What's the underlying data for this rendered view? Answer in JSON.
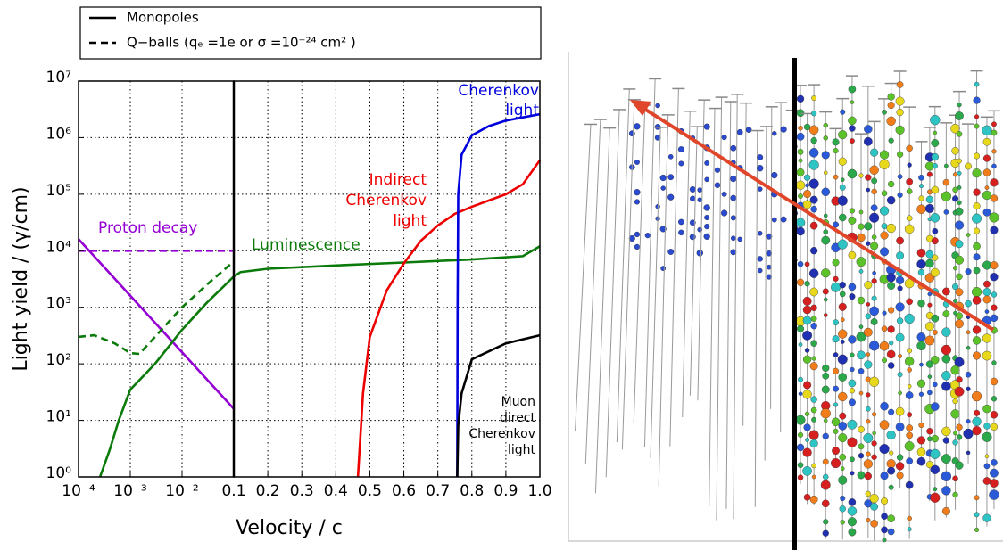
{
  "chart_data": [
    {
      "type": "line",
      "ylabel": "Light yield / (γ/cm)",
      "log_x": true,
      "log_y": true,
      "grid": true,
      "legend": [
        {
          "name": "Monopoles",
          "dash": false
        },
        {
          "name": "Q−balls (qₑ =1e or σ =10⁻²⁴  cm² )",
          "dash": true
        }
      ],
      "xlim": [
        0.0001,
        0.1
      ],
      "xticks": [
        {
          "value": 0.0001,
          "label": "10⁻⁴"
        },
        {
          "value": 0.001,
          "label": "10⁻³"
        },
        {
          "value": 0.01,
          "label": "10⁻²"
        }
      ],
      "ylim": [
        1,
        10000000
      ],
      "yticks": [
        {
          "value": 1,
          "label": "10⁰"
        },
        {
          "value": 10,
          "label": "10¹"
        },
        {
          "value": 100,
          "label": "10²"
        },
        {
          "value": 1000,
          "label": "10³"
        },
        {
          "value": 10000,
          "label": "10⁴"
        },
        {
          "value": 100000,
          "label": "10⁵"
        },
        {
          "value": 1000000,
          "label": "10⁶"
        },
        {
          "value": 10000000,
          "label": "10⁷"
        }
      ],
      "series": [
        {
          "color": "#9400d3",
          "dash": false,
          "x": [
            0.0001,
            0.1
          ],
          "values": [
            16000,
            16
          ]
        },
        {
          "color": "#9400d3",
          "dash": true,
          "x": [
            0.0001,
            0.1
          ],
          "values": [
            10000,
            10000
          ]
        },
        {
          "color": "#0a7a0a",
          "dash": false,
          "x": [
            0.00026,
            0.0004,
            0.0006,
            0.001,
            0.003,
            0.01,
            0.03,
            0.1
          ],
          "values": [
            1,
            3,
            10,
            35,
            100,
            400,
            1200,
            3500
          ]
        },
        {
          "color": "#0a7a0a",
          "dash": true,
          "x": [
            0.0001,
            0.0002,
            0.0005,
            0.001,
            0.0015,
            0.003,
            0.01,
            0.03,
            0.1
          ],
          "values": [
            300,
            320,
            230,
            155,
            150,
            300,
            1000,
            2500,
            6500
          ]
        }
      ],
      "annotations": [
        {
          "text": [
            "Proton decay"
          ],
          "color": "#9400d3"
        }
      ]
    },
    {
      "type": "line",
      "xlabel": "Velocity / c",
      "grid": true,
      "xlim": [
        0.1,
        1
      ],
      "xticks": [
        0.1,
        0.2,
        0.3,
        0.4,
        0.5,
        0.6,
        0.7,
        0.8,
        0.9,
        {
          "value": 1,
          "label": "1.0"
        }
      ],
      "series": [
        {
          "color": "#0a7a0a",
          "dash": false,
          "x": [
            0.1,
            0.12,
            0.2,
            0.4,
            0.6,
            0.8,
            0.95,
            1
          ],
          "values": [
            3500,
            4200,
            4800,
            5500,
            6200,
            7000,
            8000,
            12000
          ]
        },
        {
          "color": "#ee0000",
          "dash": false,
          "x": [
            0.465,
            0.48,
            0.5,
            0.55,
            0.6,
            0.65,
            0.7,
            0.75,
            0.8,
            0.9,
            0.95,
            1
          ],
          "values": [
            1,
            30,
            300,
            2000,
            6000,
            15000,
            28000,
            45000,
            60000,
            100000,
            150000,
            400000
          ]
        },
        {
          "color": "#0000dd",
          "dash": false,
          "x": [
            0.757,
            0.758,
            0.76,
            0.77,
            0.8,
            0.85,
            0.9,
            1
          ],
          "values": [
            1,
            1000,
            100000,
            500000,
            1100000,
            1600000,
            2000000,
            2600000
          ]
        },
        {
          "color": "#000000",
          "dash": false,
          "x": [
            0.757,
            0.76,
            0.77,
            0.8,
            0.9,
            1
          ],
          "values": [
            1,
            8,
            30,
            120,
            230,
            320
          ]
        }
      ],
      "annotations": [
        {
          "text": [
            "Luminescence"
          ],
          "color": "#0a7a0a"
        },
        {
          "text": [
            "Cherenkov",
            "light"
          ],
          "color": "#0000dd"
        },
        {
          "text": [
            "Indirect",
            "Cherenkov",
            "light"
          ],
          "color": "#ee0000"
        },
        {
          "text": [
            "Muon",
            "direct",
            "Cherenkov",
            "light"
          ],
          "color": "#000000"
        }
      ]
    }
  ]
}
